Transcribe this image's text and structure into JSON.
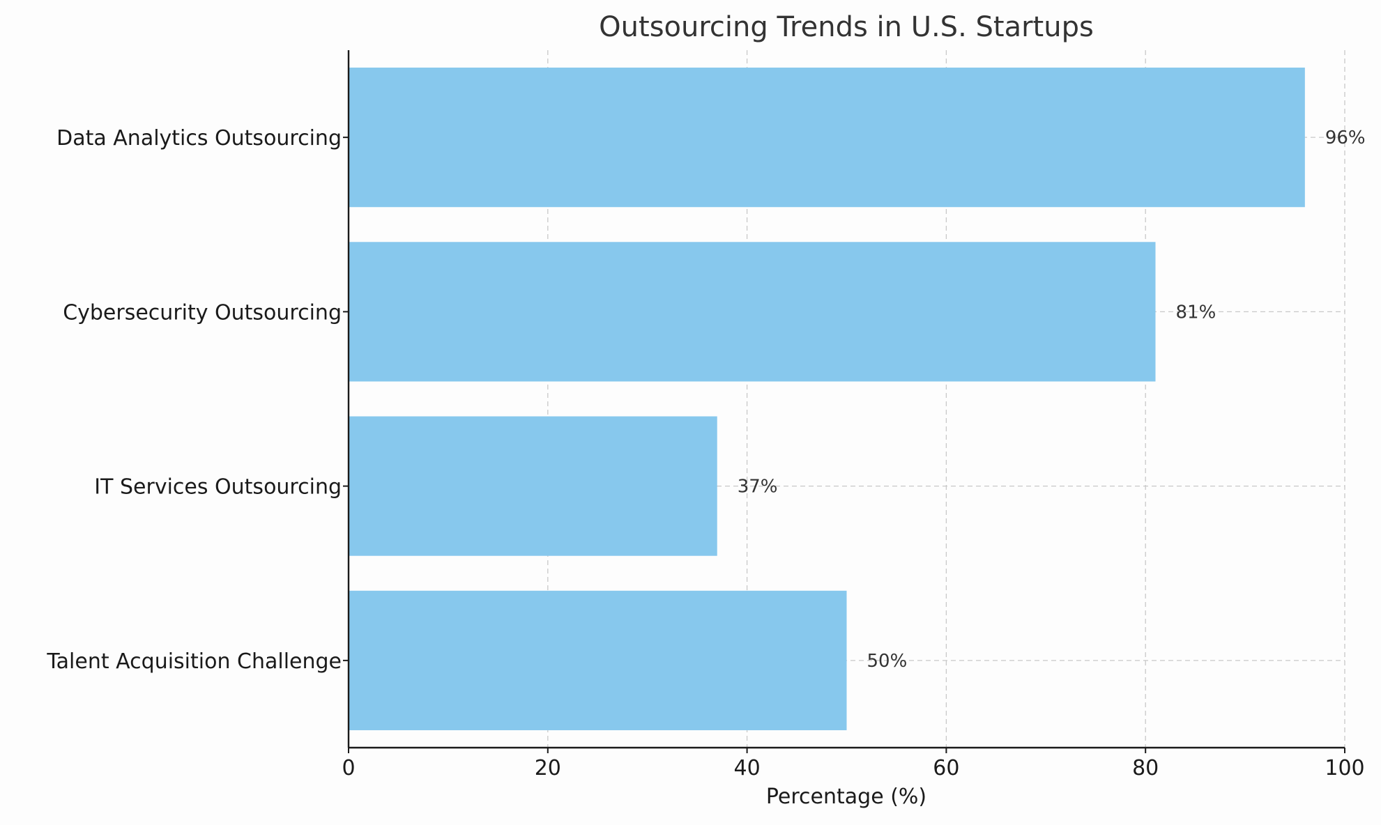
{
  "chart_data": {
    "type": "bar",
    "orientation": "horizontal",
    "title": "Outsourcing Trends in U.S. Startups",
    "xlabel": "Percentage (%)",
    "ylabel": "",
    "categories": [
      "Talent Acquisition Challenge",
      "IT Services Outsourcing",
      "Cybersecurity Outsourcing",
      "Data Analytics Outsourcing"
    ],
    "values": [
      50,
      37,
      81,
      96
    ],
    "data_labels": [
      "50%",
      "37%",
      "81%",
      "96%"
    ],
    "xlim": [
      0,
      100
    ],
    "x_ticks": [
      0,
      20,
      40,
      60,
      80,
      100
    ],
    "x_tick_labels": [
      "0",
      "20",
      "40",
      "60",
      "80",
      "100"
    ],
    "grid": true,
    "legend": "none",
    "bar_color": "#87c8ed"
  }
}
